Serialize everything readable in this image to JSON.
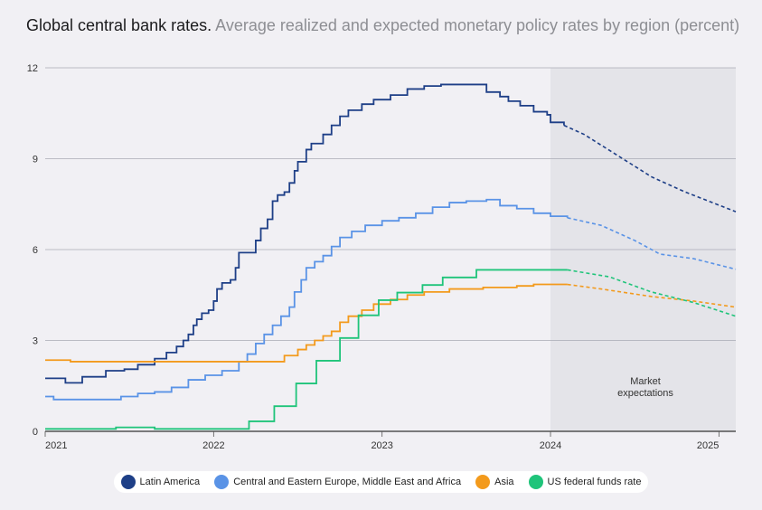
{
  "title": {
    "main": "Global central bank rates.",
    "subtitle": "Average realized and expected monetary policy rates by region (percent)"
  },
  "chart_data": {
    "type": "line",
    "xlim": [
      2021.0,
      2025.1
    ],
    "ylim": [
      0,
      12
    ],
    "yticks": [
      0,
      3,
      6,
      9,
      12
    ],
    "xticks": [
      2021,
      2022,
      2023,
      2024,
      2025
    ],
    "shaded_region": {
      "from": 2024.0,
      "to": 2025.1,
      "label": "Market expectations"
    },
    "grid": true,
    "legend_position": "bottom",
    "series": [
      {
        "name": "Latin America",
        "color": "#1e3f87",
        "actual": [
          [
            2021.0,
            1.75
          ],
          [
            2021.1,
            1.75
          ],
          [
            2021.12,
            1.6
          ],
          [
            2021.2,
            1.6
          ],
          [
            2021.22,
            1.8
          ],
          [
            2021.35,
            1.8
          ],
          [
            2021.36,
            2.0
          ],
          [
            2021.47,
            2.05
          ],
          [
            2021.55,
            2.2
          ],
          [
            2021.65,
            2.4
          ],
          [
            2021.72,
            2.6
          ],
          [
            2021.78,
            2.8
          ],
          [
            2021.82,
            3.0
          ],
          [
            2021.85,
            3.2
          ],
          [
            2021.88,
            3.5
          ],
          [
            2021.9,
            3.7
          ],
          [
            2021.93,
            3.9
          ],
          [
            2021.97,
            4.0
          ],
          [
            2022.0,
            4.3
          ],
          [
            2022.02,
            4.7
          ],
          [
            2022.05,
            4.9
          ],
          [
            2022.1,
            5.0
          ],
          [
            2022.13,
            5.4
          ],
          [
            2022.15,
            5.9
          ],
          [
            2022.2,
            5.9
          ],
          [
            2022.25,
            6.3
          ],
          [
            2022.28,
            6.7
          ],
          [
            2022.32,
            7.0
          ],
          [
            2022.35,
            7.6
          ],
          [
            2022.38,
            7.8
          ],
          [
            2022.42,
            7.9
          ],
          [
            2022.45,
            8.2
          ],
          [
            2022.48,
            8.6
          ],
          [
            2022.5,
            8.9
          ],
          [
            2022.55,
            9.3
          ],
          [
            2022.58,
            9.5
          ],
          [
            2022.65,
            9.8
          ],
          [
            2022.7,
            10.1
          ],
          [
            2022.75,
            10.4
          ],
          [
            2022.8,
            10.6
          ],
          [
            2022.88,
            10.8
          ],
          [
            2022.95,
            10.95
          ],
          [
            2023.05,
            11.1
          ],
          [
            2023.15,
            11.3
          ],
          [
            2023.25,
            11.4
          ],
          [
            2023.35,
            11.45
          ],
          [
            2023.45,
            11.45
          ],
          [
            2023.6,
            11.45
          ],
          [
            2023.62,
            11.2
          ],
          [
            2023.7,
            11.05
          ],
          [
            2023.75,
            10.9
          ],
          [
            2023.82,
            10.75
          ],
          [
            2023.9,
            10.55
          ],
          [
            2023.98,
            10.45
          ],
          [
            2024.0,
            10.2
          ],
          [
            2024.08,
            10.1
          ]
        ],
        "expected": [
          [
            2024.08,
            10.1
          ],
          [
            2024.2,
            9.8
          ],
          [
            2024.4,
            9.1
          ],
          [
            2024.6,
            8.4
          ],
          [
            2024.8,
            7.9
          ],
          [
            2025.1,
            7.25
          ]
        ]
      },
      {
        "name": "Central and Eastern Europe, Middle East and Africa",
        "color": "#5a93e6",
        "actual": [
          [
            2021.0,
            1.15
          ],
          [
            2021.05,
            1.05
          ],
          [
            2021.3,
            1.05
          ],
          [
            2021.45,
            1.15
          ],
          [
            2021.55,
            1.25
          ],
          [
            2021.65,
            1.3
          ],
          [
            2021.75,
            1.45
          ],
          [
            2021.85,
            1.7
          ],
          [
            2021.95,
            1.85
          ],
          [
            2022.05,
            2.0
          ],
          [
            2022.15,
            2.3
          ],
          [
            2022.2,
            2.55
          ],
          [
            2022.25,
            2.9
          ],
          [
            2022.3,
            3.2
          ],
          [
            2022.35,
            3.5
          ],
          [
            2022.4,
            3.8
          ],
          [
            2022.45,
            4.1
          ],
          [
            2022.48,
            4.6
          ],
          [
            2022.52,
            5.0
          ],
          [
            2022.55,
            5.4
          ],
          [
            2022.6,
            5.6
          ],
          [
            2022.65,
            5.8
          ],
          [
            2022.7,
            6.1
          ],
          [
            2022.75,
            6.4
          ],
          [
            2022.82,
            6.6
          ],
          [
            2022.9,
            6.8
          ],
          [
            2023.0,
            6.95
          ],
          [
            2023.1,
            7.05
          ],
          [
            2023.2,
            7.2
          ],
          [
            2023.3,
            7.4
          ],
          [
            2023.4,
            7.55
          ],
          [
            2023.5,
            7.6
          ],
          [
            2023.62,
            7.65
          ],
          [
            2023.7,
            7.45
          ],
          [
            2023.8,
            7.35
          ],
          [
            2023.9,
            7.2
          ],
          [
            2024.0,
            7.1
          ],
          [
            2024.1,
            7.05
          ]
        ],
        "expected": [
          [
            2024.1,
            7.05
          ],
          [
            2024.3,
            6.8
          ],
          [
            2024.5,
            6.3
          ],
          [
            2024.65,
            5.85
          ],
          [
            2024.85,
            5.7
          ],
          [
            2025.1,
            5.35
          ]
        ]
      },
      {
        "name": "Asia",
        "color": "#f39a1c",
        "actual": [
          [
            2021.0,
            2.35
          ],
          [
            2021.1,
            2.35
          ],
          [
            2021.15,
            2.3
          ],
          [
            2021.5,
            2.3
          ],
          [
            2022.0,
            2.3
          ],
          [
            2022.38,
            2.3
          ],
          [
            2022.42,
            2.5
          ],
          [
            2022.5,
            2.7
          ],
          [
            2022.55,
            2.85
          ],
          [
            2022.6,
            3.0
          ],
          [
            2022.65,
            3.15
          ],
          [
            2022.7,
            3.3
          ],
          [
            2022.75,
            3.6
          ],
          [
            2022.8,
            3.8
          ],
          [
            2022.88,
            4.0
          ],
          [
            2022.95,
            4.2
          ],
          [
            2023.05,
            4.35
          ],
          [
            2023.15,
            4.5
          ],
          [
            2023.25,
            4.6
          ],
          [
            2023.4,
            4.7
          ],
          [
            2023.6,
            4.75
          ],
          [
            2023.8,
            4.8
          ],
          [
            2023.9,
            4.85
          ],
          [
            2024.1,
            4.85
          ]
        ],
        "expected": [
          [
            2024.1,
            4.85
          ],
          [
            2024.3,
            4.7
          ],
          [
            2024.6,
            4.45
          ],
          [
            2024.85,
            4.3
          ],
          [
            2025.1,
            4.1
          ]
        ]
      },
      {
        "name": "US federal funds rate",
        "color": "#1fc47a",
        "actual": [
          [
            2021.0,
            0.08
          ],
          [
            2021.4,
            0.08
          ],
          [
            2021.42,
            0.13
          ],
          [
            2021.65,
            0.08
          ],
          [
            2022.2,
            0.08
          ],
          [
            2022.21,
            0.33
          ],
          [
            2022.35,
            0.33
          ],
          [
            2022.36,
            0.83
          ],
          [
            2022.48,
            0.83
          ],
          [
            2022.49,
            1.58
          ],
          [
            2022.6,
            1.58
          ],
          [
            2022.61,
            2.33
          ],
          [
            2022.74,
            2.33
          ],
          [
            2022.75,
            3.08
          ],
          [
            2022.85,
            3.08
          ],
          [
            2022.86,
            3.83
          ],
          [
            2022.97,
            3.83
          ],
          [
            2022.98,
            4.33
          ],
          [
            2023.08,
            4.33
          ],
          [
            2023.09,
            4.58
          ],
          [
            2023.23,
            4.58
          ],
          [
            2023.24,
            4.83
          ],
          [
            2023.35,
            4.83
          ],
          [
            2023.36,
            5.08
          ],
          [
            2023.55,
            5.08
          ],
          [
            2023.56,
            5.33
          ],
          [
            2024.1,
            5.33
          ]
        ],
        "expected": [
          [
            2024.1,
            5.33
          ],
          [
            2024.35,
            5.1
          ],
          [
            2024.6,
            4.6
          ],
          [
            2024.85,
            4.25
          ],
          [
            2025.1,
            3.8
          ]
        ]
      }
    ]
  }
}
